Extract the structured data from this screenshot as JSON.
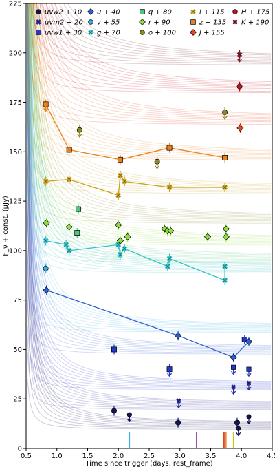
{
  "chart_data": {
    "type": "scatter",
    "xlabel": "Time since trigger (days, rest_frame)",
    "ylabel": "F_ν + const. (μJy)",
    "xlim": [
      0.5,
      4.5
    ],
    "ylim": [
      0,
      225
    ],
    "x_ticks": [
      "0.5",
      "1.0",
      "1.5",
      "2.0",
      "2.5",
      "3.0",
      "3.5",
      "4.0",
      "4.5"
    ],
    "y_ticks": [
      "0",
      "25",
      "50",
      "75",
      "100",
      "125",
      "150",
      "175",
      "200",
      "225"
    ],
    "grid": false,
    "legend_placement": "top",
    "series": [
      {
        "name": "uvw2 + 10",
        "color": "#14145e",
        "marker": "circle",
        "offset": 10,
        "asymptote": 11,
        "points": [
          [
            1.93,
            19
          ],
          [
            2.97,
            13
          ],
          [
            3.93,
            13
          ]
        ],
        "upper_limits": [
          [
            2.18,
            17
          ],
          [
            3.95,
            10
          ],
          [
            4.12,
            16
          ]
        ],
        "connect": false
      },
      {
        "name": "uvm2 + 20",
        "color": "#2a2a9a",
        "marker": "cross",
        "offset": 20,
        "asymptote": 21,
        "points": [],
        "upper_limits": [
          [
            2.98,
            24
          ],
          [
            3.87,
            31
          ],
          [
            4.12,
            33
          ]
        ],
        "connect": false
      },
      {
        "name": "uvw1 + 30",
        "color": "#2438c8",
        "marker": "square",
        "offset": 30,
        "asymptote": 31,
        "points": [
          [
            1.93,
            50
          ],
          [
            2.83,
            40
          ],
          [
            4.05,
            55
          ]
        ],
        "upper_limits": [
          [
            2.83,
            40
          ],
          [
            3.87,
            41
          ],
          [
            4.12,
            40
          ]
        ],
        "connect": false
      },
      {
        "name": "u + 40",
        "color": "#2f5fd0",
        "marker": "diamond",
        "offset": 40,
        "asymptote": 49,
        "points": [
          [
            0.83,
            80
          ],
          [
            2.97,
            57
          ],
          [
            3.87,
            46
          ],
          [
            4.12,
            54
          ]
        ],
        "upper_limits": [],
        "connect": true
      },
      {
        "name": "v + 55",
        "color": "#3ab0e8",
        "marker": "circle",
        "offset": 55,
        "asymptote": 60,
        "points": [
          [
            0.82,
            91
          ]
        ],
        "upper_limits": [],
        "connect": false
      },
      {
        "name": "g + 70",
        "color": "#35c2c9",
        "marker": "cross",
        "offset": 70,
        "asymptote": 90,
        "points": [
          [
            0.82,
            105
          ],
          [
            1.15,
            103
          ],
          [
            1.2,
            100
          ],
          [
            2.0,
            103
          ],
          [
            2.03,
            98
          ],
          [
            2.1,
            101
          ],
          [
            2.8,
            92
          ],
          [
            2.83,
            96
          ],
          [
            3.73,
            85
          ],
          [
            3.73,
            92
          ]
        ],
        "upper_limits": [],
        "connect": true
      },
      {
        "name": "q + 80",
        "color": "#4ac87e",
        "marker": "square",
        "offset": 80,
        "asymptote": 95,
        "points": [
          [
            1.35,
            121
          ],
          [
            1.33,
            109
          ]
        ],
        "upper_limits": [],
        "connect": false
      },
      {
        "name": "r + 90",
        "color": "#8ee03c",
        "marker": "diamond",
        "offset": 90,
        "asymptote": 104,
        "points": [
          [
            0.83,
            114
          ],
          [
            1.2,
            112
          ],
          [
            2.0,
            113
          ],
          [
            2.03,
            105
          ],
          [
            2.15,
            107
          ],
          [
            2.75,
            111
          ],
          [
            2.8,
            110
          ],
          [
            2.85,
            110
          ],
          [
            3.45,
            107
          ],
          [
            3.75,
            107
          ],
          [
            3.75,
            111
          ]
        ],
        "upper_limits": [],
        "connect": false
      },
      {
        "name": "o + 100",
        "color": "#8a8a28",
        "marker": "circle",
        "offset": 100,
        "asymptote": 115,
        "points": [
          [
            1.37,
            161
          ],
          [
            2.63,
            145
          ],
          [
            3.73,
            170
          ]
        ],
        "upper_limits": [
          [
            1.37,
            161
          ],
          [
            2.63,
            145
          ],
          [
            3.73,
            170
          ]
        ],
        "connect": false
      },
      {
        "name": "i + 115",
        "color": "#c8a31e",
        "marker": "cross",
        "offset": 115,
        "asymptote": 130,
        "points": [
          [
            0.82,
            135
          ],
          [
            1.2,
            136
          ],
          [
            2.0,
            128
          ],
          [
            2.03,
            138
          ],
          [
            2.1,
            135
          ],
          [
            2.83,
            132
          ],
          [
            3.73,
            132
          ]
        ],
        "upper_limits": [],
        "connect": true
      },
      {
        "name": "z + 135",
        "color": "#e8821e",
        "marker": "square",
        "offset": 135,
        "asymptote": 147,
        "points": [
          [
            0.82,
            174
          ],
          [
            1.2,
            151
          ],
          [
            2.03,
            146
          ],
          [
            2.83,
            152
          ],
          [
            3.73,
            147
          ]
        ],
        "upper_limits": [
          [
            0.82,
            174
          ]
        ],
        "connect": true
      },
      {
        "name": "J + 155",
        "color": "#e8461e",
        "marker": "diamond",
        "offset": 155,
        "asymptote": 165,
        "points": [
          [
            3.98,
            162
          ]
        ],
        "upper_limits": [],
        "connect": false
      },
      {
        "name": "H + 175",
        "color": "#c8141e",
        "marker": "circle",
        "offset": 175,
        "asymptote": 181,
        "points": [
          [
            3.97,
            183
          ]
        ],
        "upper_limits": [],
        "connect": false
      },
      {
        "name": "K + 190",
        "color": "#7a1e28",
        "marker": "cross",
        "offset": 190,
        "asymptote": 195,
        "points": [
          [
            3.97,
            199
          ]
        ],
        "upper_limits": [
          [
            3.97,
            199
          ]
        ],
        "connect": false
      }
    ],
    "vertical_markers": [
      {
        "x": 2.18,
        "color": "#3ab0e8"
      },
      {
        "x": 3.27,
        "color": "#8a2a9a"
      },
      {
        "x": 3.71,
        "color": "#e8461e"
      },
      {
        "x": 3.73,
        "color": "#c8141e"
      },
      {
        "x": 3.75,
        "color": "#e8821e"
      },
      {
        "x": 3.87,
        "color": "#c8c81e"
      }
    ]
  }
}
